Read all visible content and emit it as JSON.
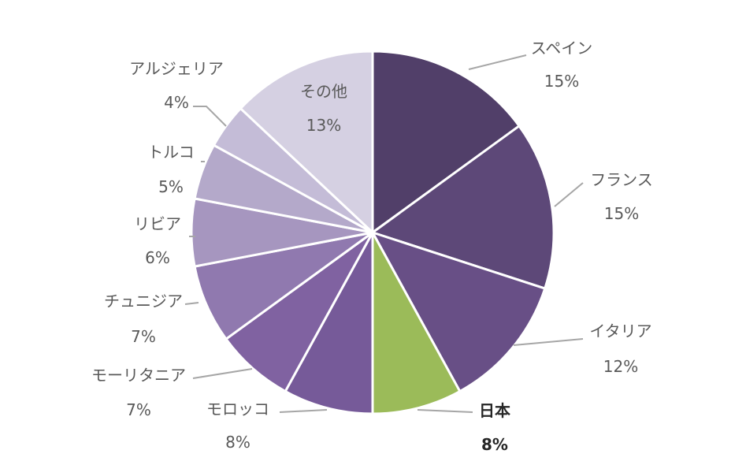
{
  "chart_data": {
    "type": "pie",
    "start_angle_deg": 0,
    "direction": "clockwise",
    "slices": [
      {
        "label": "スペイン",
        "value": 15,
        "value_text": "15%",
        "color": "#513F69",
        "highlight": false
      },
      {
        "label": "フランス",
        "value": 15,
        "value_text": "15%",
        "color": "#5D4878",
        "highlight": false
      },
      {
        "label": "イタリア",
        "value": 12,
        "value_text": "12%",
        "color": "#684F86",
        "highlight": false
      },
      {
        "label": "日本",
        "value": 8,
        "value_text": "8%",
        "color": "#9BBB59",
        "highlight": true
      },
      {
        "label": "モロッコ",
        "value": 8,
        "value_text": "8%",
        "color": "#765A99",
        "highlight": false
      },
      {
        "label": "モーリタニア",
        "value": 7,
        "value_text": "7%",
        "color": "#8062A1",
        "highlight": false
      },
      {
        "label": "チュニジア",
        "value": 7,
        "value_text": "7%",
        "color": "#9079AF",
        "highlight": false
      },
      {
        "label": "リビア",
        "value": 6,
        "value_text": "6%",
        "color": "#A696BF",
        "highlight": false
      },
      {
        "label": "トルコ",
        "value": 5,
        "value_text": "5%",
        "color": "#B4A9CA",
        "highlight": false
      },
      {
        "label": "アルジェリア",
        "value": 4,
        "value_text": "4%",
        "color": "#C4BCD7",
        "highlight": false
      },
      {
        "label": "その他",
        "value": 13,
        "value_text": "13%",
        "color": "#D5D0E2",
        "highlight": false
      }
    ]
  }
}
